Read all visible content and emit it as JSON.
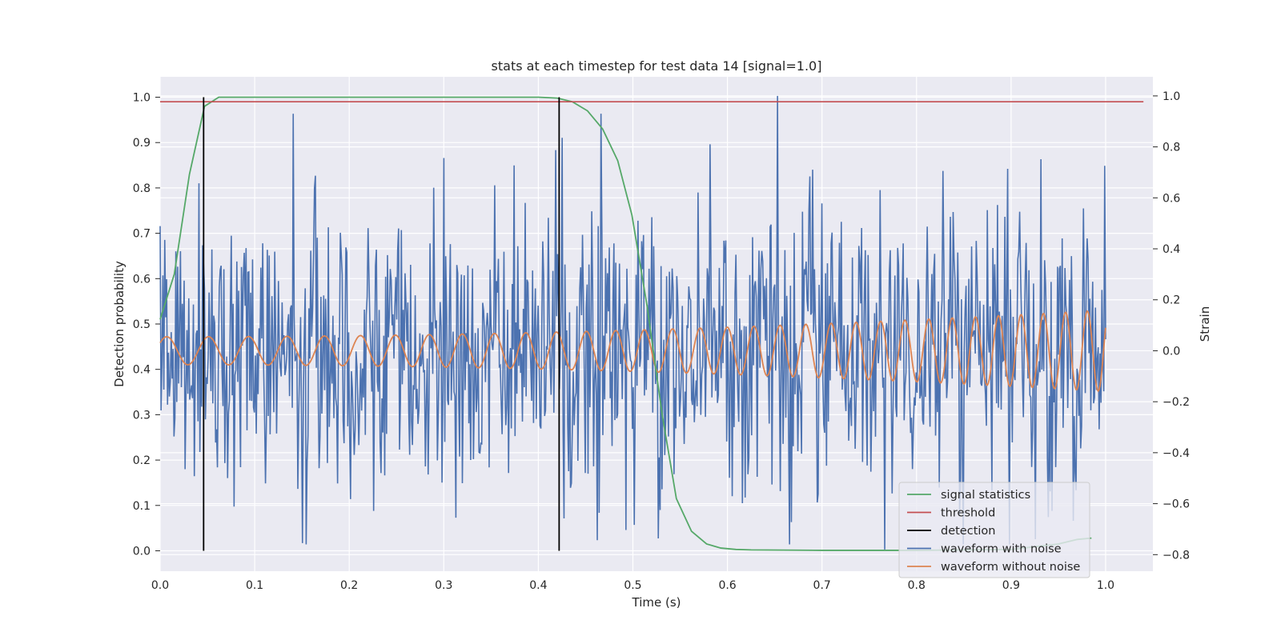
{
  "chart_data": {
    "type": "line",
    "title": "stats at each timestep for test data 14 [signal=1.0]",
    "xlabel": "Time (s)",
    "ylabel_left": "Detection probability",
    "ylabel_right": "Strain",
    "xlim": [
      0.0,
      1.05
    ],
    "ylim_left": [
      -0.045,
      1.045
    ],
    "ylim_right": [
      -0.865,
      1.075
    ],
    "x_ticks": [
      0.0,
      0.1,
      0.2,
      0.3,
      0.4,
      0.5,
      0.6,
      0.7,
      0.8,
      0.9,
      1.0
    ],
    "x_tick_labels": [
      "0.0",
      "0.1",
      "0.2",
      "0.3",
      "0.4",
      "0.5",
      "0.6",
      "0.7",
      "0.8",
      "0.9",
      "1.0"
    ],
    "y_left_ticks": [
      0.0,
      0.1,
      0.2,
      0.3,
      0.4,
      0.5,
      0.6,
      0.7,
      0.8,
      0.9,
      1.0
    ],
    "y_left_tick_labels": [
      "0.0",
      "0.1",
      "0.2",
      "0.3",
      "0.4",
      "0.5",
      "0.6",
      "0.7",
      "0.8",
      "0.9",
      "1.0"
    ],
    "y_right_ticks": [
      -0.8,
      -0.6,
      -0.4,
      -0.2,
      0.0,
      0.2,
      0.4,
      0.6,
      0.8,
      1.0
    ],
    "y_right_tick_labels": [
      "−0.8",
      "−0.6",
      "−0.4",
      "−0.2",
      "0.0",
      "0.2",
      "0.4",
      "0.6",
      "0.8",
      "1.0"
    ],
    "grid": true,
    "background": "#eaeaf2",
    "legend_position": "lower-right",
    "series": [
      {
        "name": "signal statistics",
        "axis": "left",
        "color": "#55a868",
        "x": [
          0.0,
          0.015,
          0.031,
          0.047,
          0.062,
          0.078,
          0.1,
          0.2,
          0.3,
          0.4,
          0.42,
          0.436,
          0.452,
          0.468,
          0.484,
          0.499,
          0.515,
          0.531,
          0.546,
          0.562,
          0.578,
          0.593,
          0.609,
          0.625,
          0.7,
          0.8,
          0.9,
          0.95,
          0.97,
          0.985
        ],
        "y": [
          0.51,
          0.61,
          0.83,
          0.98,
          1.0,
          1.0,
          1.0,
          1.0,
          1.0,
          1.0,
          0.998,
          0.99,
          0.97,
          0.93,
          0.86,
          0.74,
          0.54,
          0.3,
          0.115,
          0.043,
          0.015,
          0.006,
          0.003,
          0.002,
          0.001,
          0.001,
          0.003,
          0.015,
          0.025,
          0.028
        ]
      },
      {
        "name": "threshold",
        "axis": "left",
        "color": "#c44e52",
        "x": [
          0.0,
          1.04
        ],
        "y": [
          0.99,
          0.99
        ]
      },
      {
        "name": "detection",
        "axis": "left",
        "color": "#000000",
        "segments": [
          {
            "x": 0.046,
            "y0": 0.0,
            "y1": 1.0
          },
          {
            "x": 0.422,
            "y0": 0.0,
            "y1": 1.0
          }
        ]
      },
      {
        "name": "waveform with noise",
        "axis": "right",
        "color": "#4c72b0",
        "x_start": 0.0,
        "x_end": 1.0,
        "samples": 1024,
        "y_approx_range": [
          -0.78,
          1.0
        ],
        "peak": {
          "x": 0.653,
          "y": 1.0
        },
        "trough": {
          "x": 0.766,
          "y": -0.78
        }
      },
      {
        "name": "waveform without noise",
        "axis": "right",
        "color": "#dd8452",
        "x_start": 0.0,
        "x_end": 1.0,
        "y_approx_amplitude_start": 0.055,
        "y_approx_amplitude_end": 0.16,
        "approx_cycles": 33
      }
    ]
  }
}
